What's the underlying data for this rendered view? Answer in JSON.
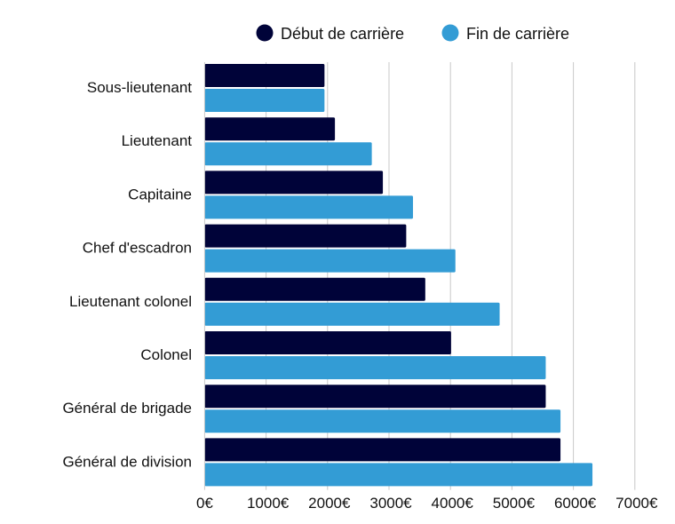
{
  "chart_data": {
    "type": "bar",
    "orientation": "horizontal",
    "categories": [
      "Sous-lieutenant",
      "Lieutenant",
      "Capitaine",
      "Chef d'escadron",
      "Lieutenant colonel",
      "Colonel",
      "Général de brigade",
      "Général de division"
    ],
    "series": [
      {
        "name": "Début de carrière",
        "color": "#000339",
        "values": [
          1950,
          2120,
          2900,
          3280,
          3590,
          4010,
          5550,
          5790
        ]
      },
      {
        "name": "Fin de carrière",
        "color": "#339cd5",
        "values": [
          1950,
          2720,
          3390,
          4080,
          4800,
          5550,
          5790,
          6310
        ]
      }
    ],
    "xlim": [
      0,
      7000
    ],
    "x_ticks": [
      "0€",
      "1000€",
      "2000€",
      "3000€",
      "4000€",
      "5000€",
      "6000€",
      "7000€"
    ],
    "grid": true,
    "legend_position": "top"
  }
}
